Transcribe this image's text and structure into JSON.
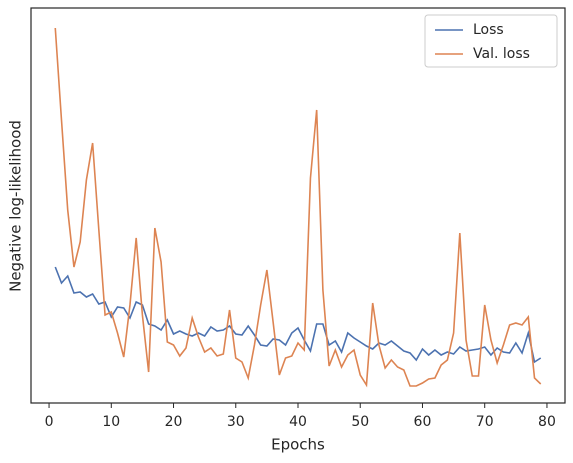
{
  "chart_data": {
    "type": "line",
    "x_label": "Epochs",
    "y_label": "Negative log-likelihood",
    "x": [
      1,
      2,
      3,
      4,
      5,
      6,
      7,
      8,
      9,
      10,
      11,
      12,
      13,
      14,
      15,
      16,
      17,
      18,
      19,
      20,
      21,
      22,
      23,
      24,
      25,
      26,
      27,
      28,
      29,
      30,
      31,
      32,
      33,
      34,
      35,
      36,
      37,
      38,
      39,
      40,
      41,
      42,
      43,
      44,
      45,
      46,
      47,
      48,
      49,
      50,
      51,
      52,
      53,
      54,
      55,
      56,
      57,
      58,
      59,
      60,
      61,
      62,
      63,
      64,
      65,
      66,
      67,
      68,
      69,
      70,
      71,
      72,
      73,
      74,
      75,
      76,
      77,
      78,
      79
    ],
    "series": [
      {
        "name": "Loss",
        "color": "#4c72b0",
        "values": [
          136,
          120,
          127,
          110,
          111,
          106,
          109,
          99,
          101,
          86,
          96,
          95,
          85,
          101,
          98,
          79,
          77,
          73,
          83,
          69,
          72,
          69,
          67,
          70,
          67,
          76,
          72,
          73,
          77,
          69,
          68,
          77,
          68,
          58,
          57,
          64,
          63,
          58,
          70,
          75,
          63,
          52,
          79,
          79,
          58,
          62,
          51,
          70,
          65,
          61,
          57,
          54,
          60,
          58,
          62,
          57,
          52,
          50,
          43,
          54,
          48,
          53,
          48,
          51,
          49,
          56,
          52,
          53,
          54,
          56,
          48,
          55,
          51,
          50,
          60,
          50,
          70,
          41,
          45
        ]
      },
      {
        "name": "Val. loss",
        "color": "#dd8452",
        "values": [
          375,
          283,
          193,
          136,
          161,
          223,
          260,
          173,
          88,
          91,
          70,
          46,
          98,
          165,
          88,
          31,
          175,
          141,
          61,
          58,
          47,
          55,
          85,
          66,
          51,
          55,
          47,
          49,
          93,
          45,
          41,
          25,
          58,
          98,
          133,
          81,
          28,
          45,
          47,
          60,
          53,
          225,
          293,
          113,
          37,
          53,
          36,
          48,
          53,
          28,
          18,
          100,
          58,
          35,
          43,
          36,
          33,
          17,
          17,
          20,
          24,
          25,
          38,
          43,
          70,
          170,
          63,
          27,
          27,
          98,
          63,
          40,
          58,
          78,
          80,
          78,
          86,
          25,
          19
        ]
      }
    ],
    "xlim": [
      -2.9,
      82.9
    ],
    "xticks": [
      0,
      10,
      20,
      30,
      40,
      50,
      60,
      70,
      80
    ],
    "ylim": [
      0,
      395
    ],
    "legend": "upper right"
  }
}
